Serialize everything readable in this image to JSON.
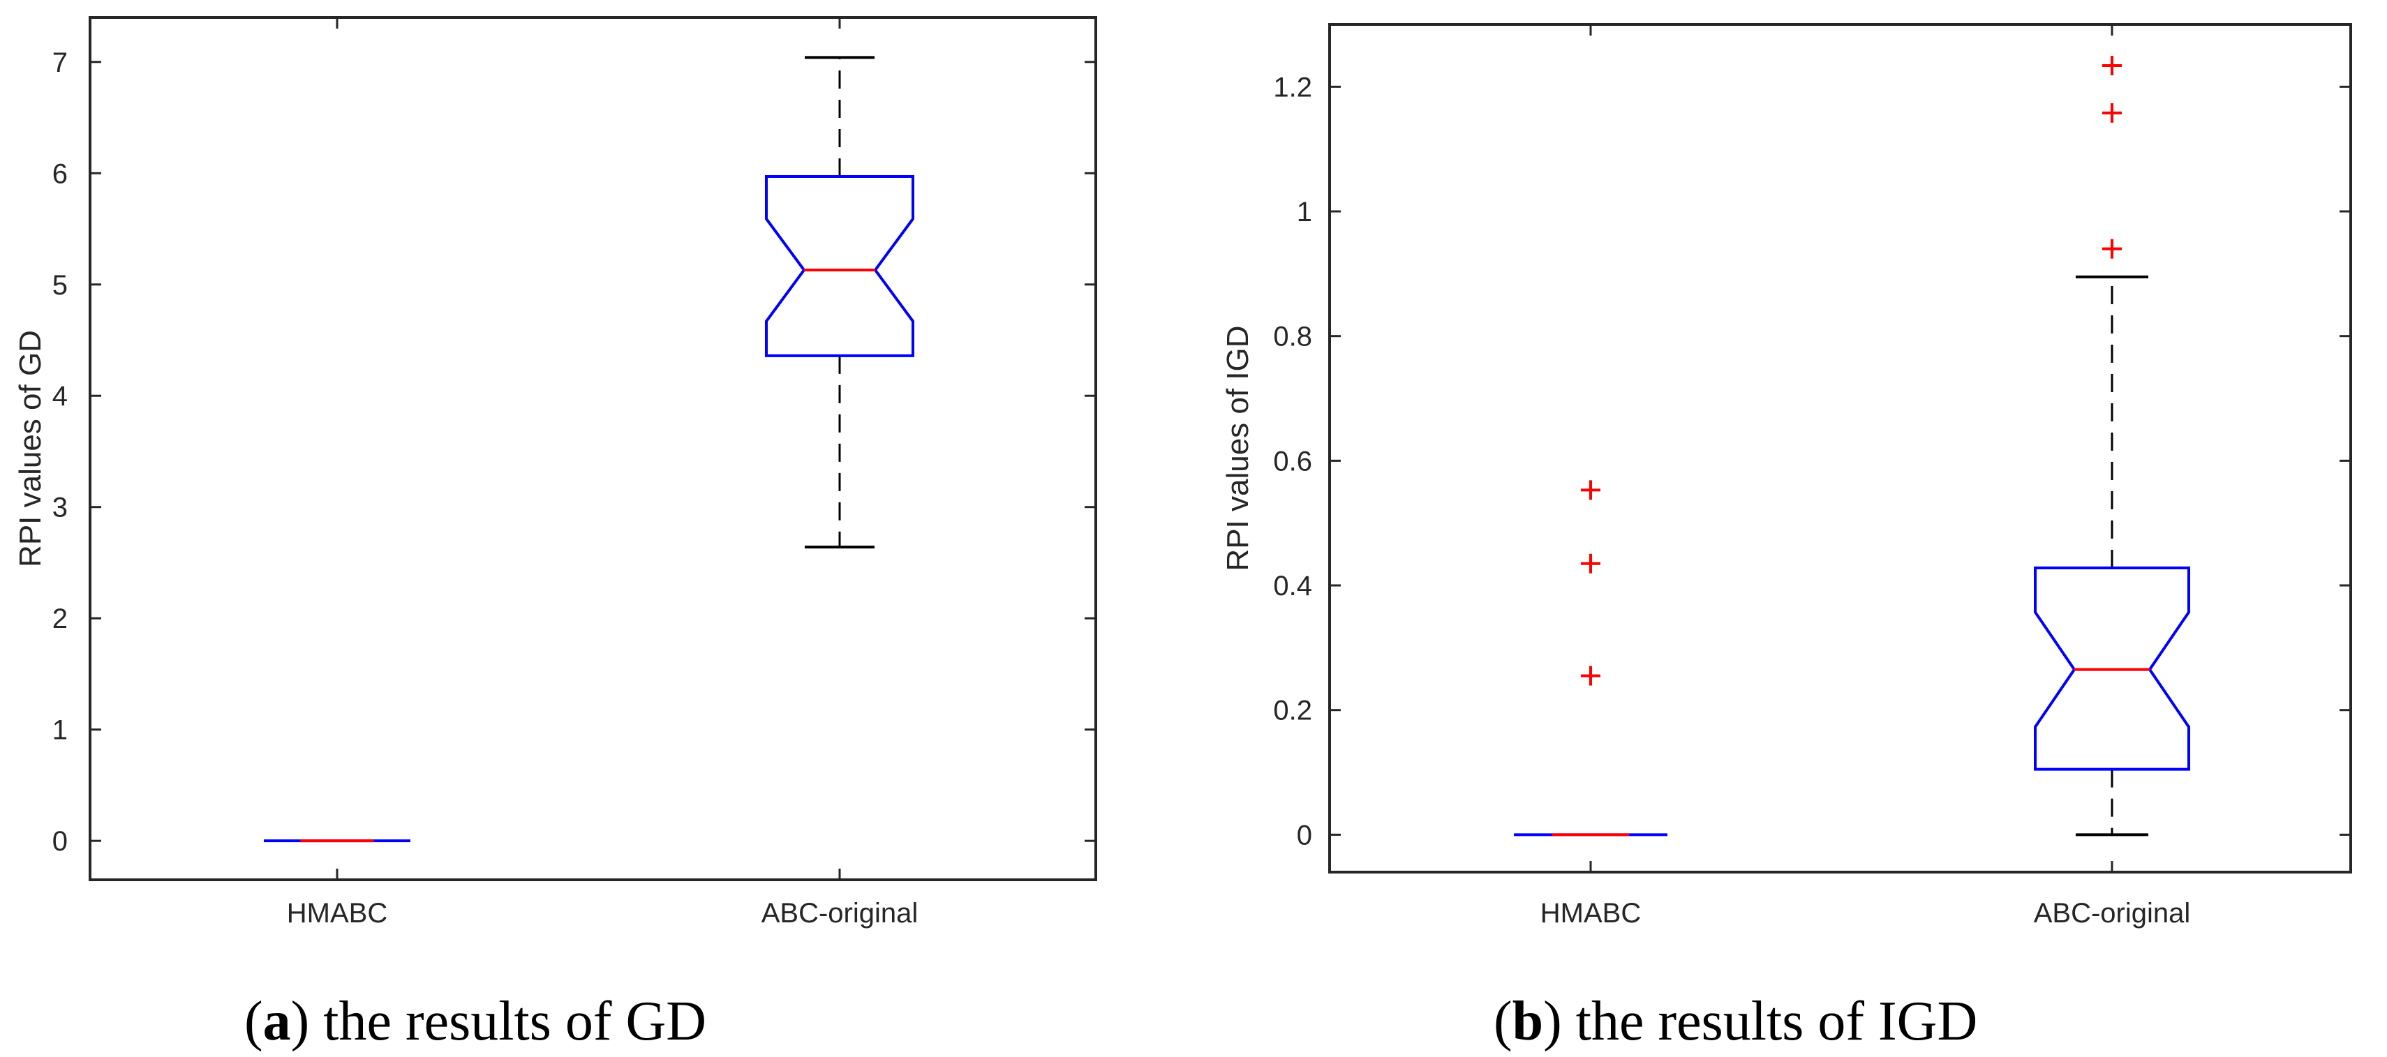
{
  "colors": {
    "box": "#0000ff",
    "median": "#ff0000",
    "outlier": "#ff0000",
    "whisker": "#000000",
    "axis": "#262626"
  },
  "chart_data": [
    {
      "type": "box",
      "id": "a",
      "title": "",
      "xlabel": "",
      "ylabel": "RPI values of GD",
      "categories": [
        "HMABC",
        "ABC-original"
      ],
      "ylim": [
        -0.35,
        7.4
      ],
      "yticks": [
        0,
        1,
        2,
        3,
        4,
        5,
        6,
        7
      ],
      "yticklabels": [
        "0",
        "1",
        "2",
        "3",
        "4",
        "5",
        "6",
        "7"
      ],
      "grid": false,
      "notched": true,
      "boxes": [
        {
          "category": "HMABC",
          "whisker_low": 0,
          "q1": 0,
          "median": 0,
          "q3": 0,
          "whisker_high": 0,
          "notch_low": 0,
          "notch_high": 0,
          "outliers": []
        },
        {
          "category": "ABC-original",
          "whisker_low": 2.64,
          "q1": 4.36,
          "median": 5.13,
          "q3": 5.97,
          "whisker_high": 7.04,
          "notch_low": 4.67,
          "notch_high": 5.59,
          "outliers": []
        }
      ],
      "caption": {
        "label": "a",
        "text": " the results of GD"
      }
    },
    {
      "type": "box",
      "id": "b",
      "title": "",
      "xlabel": "",
      "ylabel": "RPI values of IGD",
      "categories": [
        "HMABC",
        "ABC-original"
      ],
      "ylim": [
        -0.06,
        1.3
      ],
      "yticks": [
        0,
        0.2,
        0.4,
        0.6,
        0.8,
        1,
        1.2
      ],
      "yticklabels": [
        "0",
        "0.2",
        "0.4",
        "0.6",
        "0.8",
        "1",
        "1.2"
      ],
      "grid": false,
      "notched": true,
      "boxes": [
        {
          "category": "HMABC",
          "whisker_low": 0,
          "q1": 0,
          "median": 0,
          "q3": 0,
          "whisker_high": 0,
          "notch_low": 0,
          "notch_high": 0,
          "outliers": [
            0.255,
            0.435,
            0.553
          ]
        },
        {
          "category": "ABC-original",
          "whisker_low": 0,
          "q1": 0.105,
          "median": 0.265,
          "q3": 0.428,
          "whisker_high": 0.895,
          "notch_low": 0.173,
          "notch_high": 0.357,
          "outliers": [
            0.94,
            1.158,
            1.234
          ]
        }
      ],
      "caption": {
        "label": "b",
        "text": " the results of IGD"
      }
    }
  ]
}
